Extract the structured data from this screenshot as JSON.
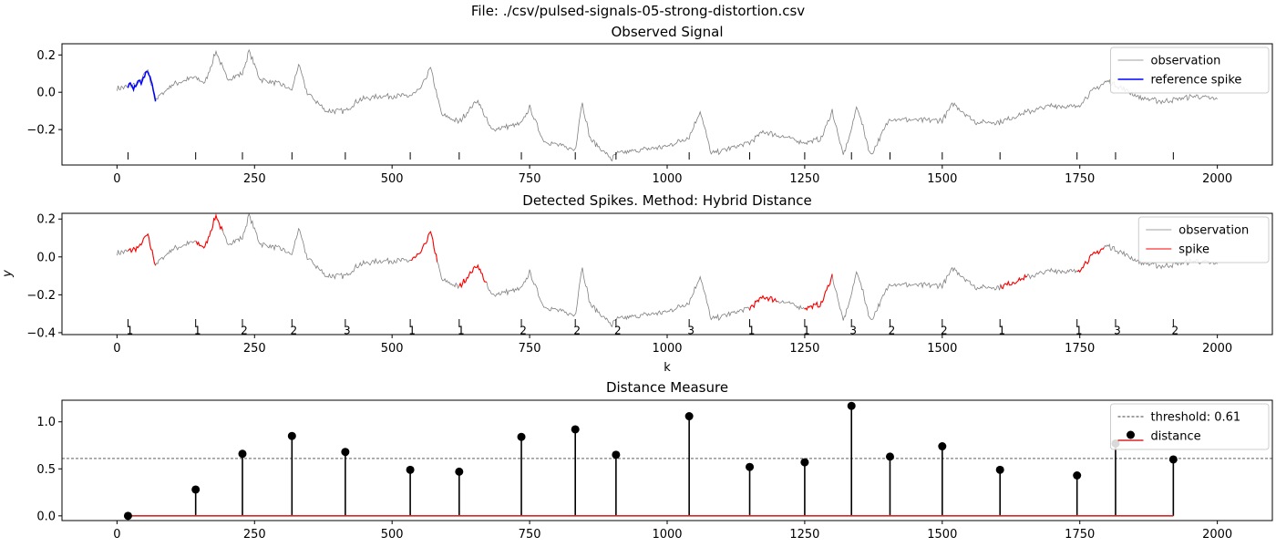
{
  "suptitle": "File: ./csv/pulsed-signals-05-strong-distortion.csv",
  "colors": {
    "observation": "#808080",
    "reference": "#0000ff",
    "spike": "#ff0000",
    "stem": "#000000",
    "baseline": "#d62728"
  },
  "chart_data": [
    {
      "type": "line",
      "title": "Observed Signal",
      "xlabel": "",
      "ylabel": "",
      "xlim": [
        -100,
        2100
      ],
      "ylim": [
        -0.39,
        0.26
      ],
      "xticks": [
        0,
        250,
        500,
        750,
        1000,
        1250,
        1500,
        1750,
        2000
      ],
      "yticks": [
        -0.2,
        0.0,
        0.2
      ],
      "legend": {
        "position": "top-right",
        "entries": [
          "observation",
          "reference spike"
        ]
      },
      "spike_positions": [
        20,
        143,
        228,
        318,
        415,
        533,
        622,
        735,
        833,
        907,
        1040,
        1150,
        1250,
        1335,
        1405,
        1500,
        1605,
        1745,
        1815,
        1920
      ],
      "signal_points": [
        [
          0,
          0.02
        ],
        [
          20,
          0.03
        ],
        [
          40,
          0.05
        ],
        [
          55,
          0.12
        ],
        [
          70,
          -0.04
        ],
        [
          100,
          0.04
        ],
        [
          140,
          0.08
        ],
        [
          160,
          0.05
        ],
        [
          180,
          0.22
        ],
        [
          200,
          0.07
        ],
        [
          228,
          0.1
        ],
        [
          240,
          0.22
        ],
        [
          260,
          0.07
        ],
        [
          300,
          0.04
        ],
        [
          318,
          0.01
        ],
        [
          330,
          0.15
        ],
        [
          345,
          0.0
        ],
        [
          380,
          -0.1
        ],
        [
          415,
          -0.1
        ],
        [
          440,
          -0.04
        ],
        [
          480,
          -0.02
        ],
        [
          533,
          -0.02
        ],
        [
          550,
          0.01
        ],
        [
          570,
          0.13
        ],
        [
          590,
          -0.12
        ],
        [
          622,
          -0.16
        ],
        [
          655,
          -0.04
        ],
        [
          680,
          -0.2
        ],
        [
          735,
          -0.17
        ],
        [
          750,
          -0.08
        ],
        [
          775,
          -0.26
        ],
        [
          833,
          -0.31
        ],
        [
          845,
          -0.05
        ],
        [
          860,
          -0.25
        ],
        [
          900,
          -0.36
        ],
        [
          907,
          -0.33
        ],
        [
          950,
          -0.31
        ],
        [
          1000,
          -0.29
        ],
        [
          1040,
          -0.24
        ],
        [
          1060,
          -0.1
        ],
        [
          1080,
          -0.33
        ],
        [
          1150,
          -0.27
        ],
        [
          1175,
          -0.21
        ],
        [
          1200,
          -0.23
        ],
        [
          1250,
          -0.27
        ],
        [
          1280,
          -0.25
        ],
        [
          1300,
          -0.1
        ],
        [
          1320,
          -0.34
        ],
        [
          1335,
          -0.2
        ],
        [
          1345,
          -0.07
        ],
        [
          1370,
          -0.34
        ],
        [
          1405,
          -0.14
        ],
        [
          1450,
          -0.15
        ],
        [
          1500,
          -0.15
        ],
        [
          1520,
          -0.06
        ],
        [
          1560,
          -0.16
        ],
        [
          1605,
          -0.16
        ],
        [
          1650,
          -0.11
        ],
        [
          1700,
          -0.07
        ],
        [
          1745,
          -0.08
        ],
        [
          1770,
          0.0
        ],
        [
          1800,
          0.06
        ],
        [
          1815,
          0.04
        ],
        [
          1860,
          -0.03
        ],
        [
          1900,
          -0.05
        ],
        [
          1920,
          -0.04
        ],
        [
          1960,
          -0.02
        ],
        [
          2000,
          -0.04
        ]
      ],
      "reference_spike_points": [
        [
          20,
          0.03
        ],
        [
          25,
          0.05
        ],
        [
          30,
          0.02
        ],
        [
          35,
          0.04
        ],
        [
          40,
          0.06
        ],
        [
          45,
          0.05
        ],
        [
          50,
          0.09
        ],
        [
          55,
          0.12
        ],
        [
          60,
          0.09
        ],
        [
          65,
          0.02
        ],
        [
          70,
          -0.04
        ]
      ]
    },
    {
      "type": "line",
      "title": "Detected Spikes. Method: Hybrid Distance",
      "xlabel": "k",
      "ylabel": "y",
      "xlim": [
        -100,
        2100
      ],
      "ylim": [
        -0.41,
        0.23
      ],
      "xticks": [
        0,
        250,
        500,
        750,
        1000,
        1250,
        1500,
        1750,
        2000
      ],
      "yticks": [
        -0.4,
        -0.2,
        0.0,
        0.2
      ],
      "legend": {
        "position": "top-right",
        "entries": [
          "observation",
          "spike"
        ]
      },
      "spike_labels": [
        {
          "x": 20,
          "label": "1"
        },
        {
          "x": 143,
          "label": "1"
        },
        {
          "x": 228,
          "label": "2"
        },
        {
          "x": 318,
          "label": "2"
        },
        {
          "x": 415,
          "label": "3"
        },
        {
          "x": 533,
          "label": "1"
        },
        {
          "x": 622,
          "label": "1"
        },
        {
          "x": 735,
          "label": "2"
        },
        {
          "x": 833,
          "label": "2"
        },
        {
          "x": 907,
          "label": "2"
        },
        {
          "x": 1040,
          "label": "3"
        },
        {
          "x": 1150,
          "label": "1"
        },
        {
          "x": 1250,
          "label": "1"
        },
        {
          "x": 1335,
          "label": "3"
        },
        {
          "x": 1405,
          "label": "2"
        },
        {
          "x": 1500,
          "label": "2"
        },
        {
          "x": 1605,
          "label": "1"
        },
        {
          "x": 1745,
          "label": "1"
        },
        {
          "x": 1815,
          "label": "3"
        },
        {
          "x": 1920,
          "label": "2"
        }
      ],
      "detected_spike_starts": [
        20,
        143,
        533,
        622,
        1150,
        1250,
        1605,
        1745
      ]
    },
    {
      "type": "stem",
      "title": "Distance Measure",
      "xlabel": "",
      "ylabel": "",
      "xlim": [
        -100,
        2100
      ],
      "ylim": [
        -0.05,
        1.23
      ],
      "xticks": [
        0,
        250,
        500,
        750,
        1000,
        1250,
        1500,
        1750,
        2000
      ],
      "yticks": [
        0.0,
        0.5,
        1.0
      ],
      "threshold": 0.61,
      "legend": {
        "position": "top-right",
        "entries": [
          "threshold: 0.61",
          "distance"
        ]
      },
      "x": [
        20,
        143,
        228,
        318,
        415,
        533,
        622,
        735,
        833,
        907,
        1040,
        1150,
        1250,
        1335,
        1405,
        1500,
        1605,
        1745,
        1815,
        1920
      ],
      "values": [
        0.0,
        0.28,
        0.66,
        0.85,
        0.68,
        0.49,
        0.47,
        0.84,
        0.92,
        0.65,
        1.06,
        0.52,
        0.57,
        1.17,
        0.63,
        0.74,
        0.49,
        0.43,
        0.77,
        0.6
      ]
    }
  ]
}
